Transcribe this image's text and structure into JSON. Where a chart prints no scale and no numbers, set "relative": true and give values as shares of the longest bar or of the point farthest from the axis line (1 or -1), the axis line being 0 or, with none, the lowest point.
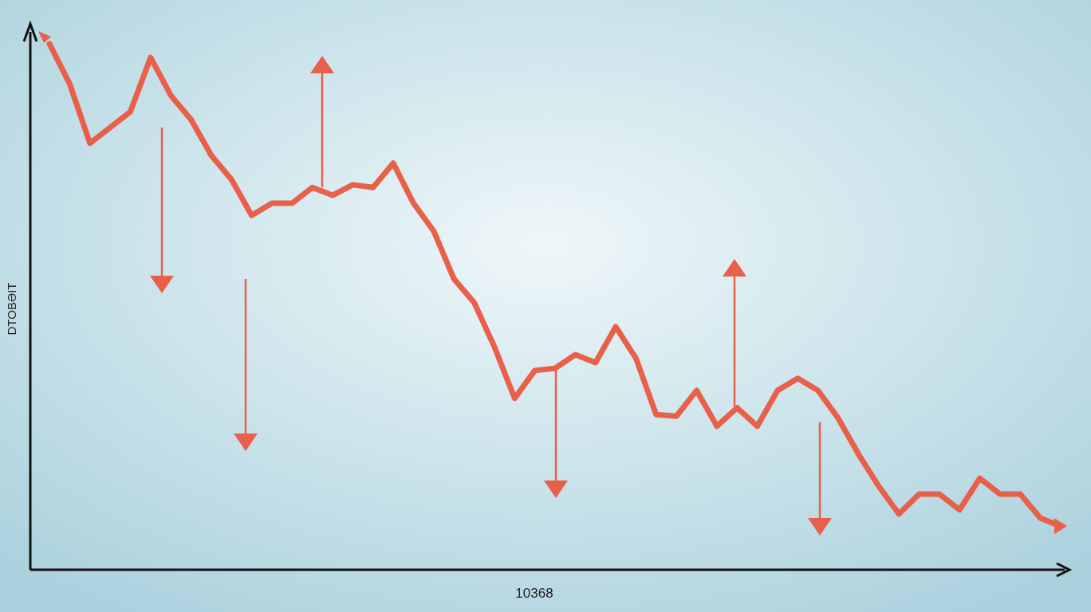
{
  "chart_data": {
    "type": "line",
    "relative": true,
    "ylabel": "DTOBƏIT",
    "xlabel": "10368",
    "categories": [
      null,
      null,
      null,
      null,
      null,
      null,
      null,
      null,
      null,
      null,
      null,
      null,
      null,
      null,
      null,
      null,
      null,
      null,
      null,
      null,
      null,
      null,
      null,
      null,
      null,
      null,
      null,
      null,
      null,
      null,
      null,
      null,
      null,
      null,
      null,
      null,
      null,
      null,
      null,
      null,
      null,
      null,
      null,
      null,
      null,
      null,
      null,
      null,
      null,
      null,
      null
    ],
    "series": [
      {
        "color": "#e8604a",
        "values": [
          1,
          0.924,
          0.811,
          0.841,
          0.871,
          0.974,
          0.902,
          0.856,
          0.788,
          0.742,
          0.674,
          0.697,
          0.697,
          0.727,
          0.712,
          0.732,
          0.727,
          0.773,
          0.697,
          0.644,
          0.553,
          0.508,
          0.424,
          0.326,
          0.379,
          0.383,
          0.409,
          0.394,
          0.462,
          0.402,
          0.295,
          0.292,
          0.341,
          0.273,
          0.308,
          0.273,
          0.341,
          0.364,
          0.341,
          0.288,
          0.22,
          0.159,
          0.106,
          0.144,
          0.144,
          0.114,
          0.174,
          0.144,
          0.144,
          0.098,
          0.083
        ]
      }
    ],
    "marker": "none",
    "line_style": "solid"
  }
}
